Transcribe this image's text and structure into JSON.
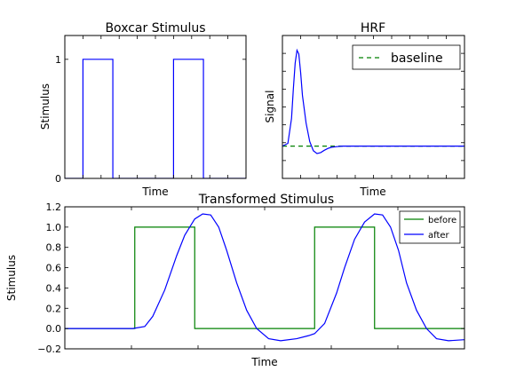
{
  "colors": {
    "green": "#008000",
    "blue": "#0000ff",
    "axis": "#000000"
  },
  "chart_data": [
    {
      "type": "line",
      "title": "Boxcar Stimulus",
      "xlabel": "Time",
      "ylabel": "Stimulus",
      "xlim": [
        0,
        10
      ],
      "ylim": [
        0,
        1.2
      ],
      "yticks": [
        0,
        1
      ],
      "ytick_labels": [
        "0",
        "1"
      ],
      "series": [
        {
          "color": "#0000ff",
          "x": [
            0,
            1,
            1,
            2.65,
            2.65,
            6,
            6,
            7.65,
            7.65,
            10
          ],
          "y": [
            0,
            0,
            1,
            1,
            0,
            0,
            1,
            1,
            0,
            0
          ]
        }
      ]
    },
    {
      "type": "line",
      "title": "HRF",
      "xlabel": "Time",
      "ylabel": "Signal",
      "xlim": [
        0,
        10
      ],
      "ylim": [
        -0.35,
        1.2
      ],
      "legend": {
        "position": "top-right",
        "entries": [
          "baseline"
        ]
      },
      "series": [
        {
          "name": "baseline",
          "color": "#008000",
          "style": "dashed",
          "x": [
            0,
            10
          ],
          "y": [
            0,
            0
          ]
        },
        {
          "color": "#0000ff",
          "x": [
            0,
            0.3,
            0.5,
            0.6,
            0.7,
            0.8,
            0.9,
            1.0,
            1.1,
            1.3,
            1.5,
            1.7,
            1.9,
            2.1,
            2.3,
            2.5,
            2.7,
            3.0,
            3.3,
            3.6,
            4.0,
            4.5,
            5.0,
            6.0,
            10
          ],
          "y": [
            0,
            0.03,
            0.3,
            0.62,
            0.9,
            1.04,
            1.0,
            0.8,
            0.55,
            0.25,
            0.05,
            -0.05,
            -0.08,
            -0.07,
            -0.045,
            -0.025,
            -0.012,
            -0.005,
            0.0,
            0.0,
            0.0,
            0.0,
            0.0,
            0.0,
            0.0
          ]
        }
      ]
    },
    {
      "type": "line",
      "title": "Transformed Stimulus",
      "xlabel": "Time",
      "ylabel": "Stimulus",
      "xlim": [
        0,
        10
      ],
      "ylim": [
        -0.2,
        1.2
      ],
      "yticks": [
        -0.2,
        0.0,
        0.2,
        0.4,
        0.6,
        0.8,
        1.0,
        1.2
      ],
      "ytick_labels": [
        "−0.2",
        "0.0",
        "0.2",
        "0.4",
        "0.6",
        "0.8",
        "1.0",
        "1.2"
      ],
      "legend": {
        "position": "top-right",
        "entries": [
          "before",
          "after"
        ]
      },
      "series": [
        {
          "name": "before",
          "color": "#008000",
          "x": [
            0,
            1.75,
            1.75,
            3.25,
            3.25,
            6.25,
            6.25,
            7.75,
            7.75,
            10
          ],
          "y": [
            0,
            0,
            1,
            1,
            0,
            0,
            1,
            1,
            0,
            0
          ]
        },
        {
          "name": "after",
          "color": "#0000ff",
          "x": [
            0,
            1.7,
            2.0,
            2.2,
            2.5,
            2.8,
            3.0,
            3.25,
            3.45,
            3.65,
            3.85,
            4.05,
            4.3,
            4.55,
            4.8,
            5.1,
            5.4,
            5.8,
            6.1,
            6.25,
            6.5,
            6.8,
            7.0,
            7.25,
            7.5,
            7.75,
            7.95,
            8.15,
            8.35,
            8.55,
            8.8,
            9.05,
            9.3,
            9.6,
            10.0
          ],
          "y": [
            0,
            0,
            0.02,
            0.12,
            0.38,
            0.72,
            0.92,
            1.08,
            1.13,
            1.12,
            1.0,
            0.77,
            0.45,
            0.18,
            0.0,
            -0.1,
            -0.12,
            -0.1,
            -0.07,
            -0.05,
            0.05,
            0.35,
            0.6,
            0.88,
            1.05,
            1.13,
            1.12,
            1.0,
            0.77,
            0.45,
            0.18,
            0.0,
            -0.1,
            -0.12,
            -0.11
          ]
        }
      ]
    }
  ]
}
